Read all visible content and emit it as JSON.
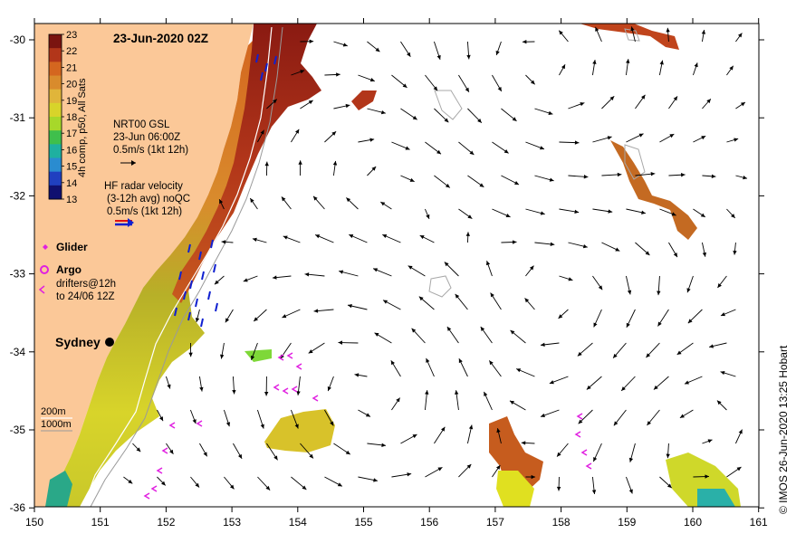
{
  "title": "23-Jun-2020 02Z",
  "credit": "© IMOS 26-Jun-2020 13:25 Hobart",
  "axes": {
    "lon_ticks": [
      "150",
      "151",
      "152",
      "153",
      "154",
      "155",
      "156",
      "157",
      "158",
      "159",
      "160",
      "161"
    ],
    "lat_ticks": [
      "-30",
      "-31",
      "-32",
      "-33",
      "-34",
      "-35",
      "-36"
    ]
  },
  "colorbar": {
    "label": "4h comp, p50, All Sats",
    "ticks": [
      "23",
      "22",
      "21",
      "20",
      "19",
      "18",
      "17",
      "16",
      "15",
      "14",
      "13"
    ],
    "colors": [
      "#7a1410",
      "#b2361a",
      "#d4661f",
      "#d98b2c",
      "#e0b53a",
      "#d8d42a",
      "#a7d82a",
      "#3fbf4c",
      "#1fb0a0",
      "#2a8cd0",
      "#2040c0",
      "#101070"
    ]
  },
  "legend": {
    "gsl_title": "NRT00 GSL",
    "gsl_time": "23-Jun 06:00Z",
    "gsl_scale": "0.5m/s (1kt 12h)",
    "hf_title": "HF radar velocity",
    "hf_avg": "(3-12h avg) noQC",
    "hf_scale": "0.5m/s (1kt 12h)",
    "glider": "Glider",
    "argo": "Argo",
    "drifters_1": "drifters@12h",
    "drifters_2": "to 24/06 12Z",
    "contour_200": "200m",
    "contour_1000": "1000m"
  },
  "places": {
    "city": "Sydney"
  },
  "colors": {
    "land": "#fbc898",
    "hf_arrow": "#1020d0",
    "drifter": "#e020e0",
    "velocity_arrow": "#000000"
  }
}
